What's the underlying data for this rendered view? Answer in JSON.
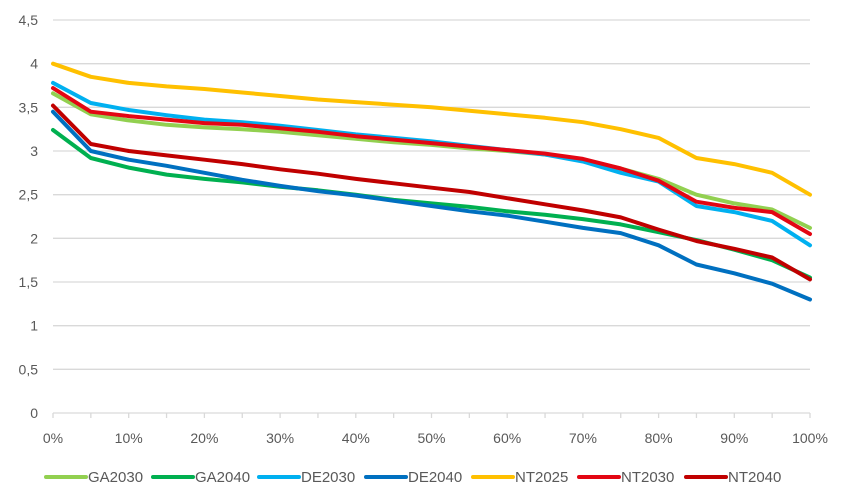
{
  "chart_data": {
    "type": "line",
    "title": "",
    "xlabel": "",
    "ylabel": "",
    "x": [
      0,
      5,
      10,
      15,
      20,
      25,
      30,
      35,
      40,
      45,
      50,
      55,
      60,
      65,
      70,
      75,
      80,
      85,
      90,
      95,
      100
    ],
    "x_unit": "%",
    "xlim": [
      0,
      100
    ],
    "ylim": [
      0,
      4.5
    ],
    "x_ticks": [
      "0%",
      "10%",
      "20%",
      "30%",
      "40%",
      "50%",
      "60%",
      "70%",
      "80%",
      "90%",
      "100%"
    ],
    "x_tick_values": [
      0,
      10,
      20,
      30,
      40,
      50,
      60,
      70,
      80,
      90,
      100
    ],
    "y_ticks": [
      "0",
      "0,5",
      "1",
      "1,5",
      "2",
      "2,5",
      "3",
      "3,5",
      "4",
      "4,5"
    ],
    "y_tick_values": [
      0,
      0.5,
      1,
      1.5,
      2,
      2.5,
      3,
      3.5,
      4,
      4.5
    ],
    "grid": "horizontal",
    "legend_position": "bottom",
    "series": [
      {
        "name": "GA2030",
        "color": "#92d050",
        "values": [
          3.66,
          3.42,
          3.35,
          3.3,
          3.27,
          3.25,
          3.22,
          3.18,
          3.14,
          3.1,
          3.07,
          3.03,
          3.0,
          2.96,
          2.9,
          2.8,
          2.68,
          2.5,
          2.4,
          2.33,
          2.12
        ]
      },
      {
        "name": "GA2040",
        "color": "#00b050",
        "values": [
          3.24,
          2.92,
          2.81,
          2.73,
          2.68,
          2.64,
          2.59,
          2.55,
          2.5,
          2.44,
          2.4,
          2.36,
          2.31,
          2.27,
          2.22,
          2.16,
          2.07,
          1.98,
          1.87,
          1.75,
          1.55
        ]
      },
      {
        "name": "DE2030",
        "color": "#00b0f0",
        "values": [
          3.78,
          3.55,
          3.47,
          3.41,
          3.36,
          3.33,
          3.29,
          3.24,
          3.19,
          3.15,
          3.11,
          3.06,
          3.01,
          2.96,
          2.88,
          2.75,
          2.65,
          2.37,
          2.3,
          2.2,
          1.92
        ]
      },
      {
        "name": "DE2040",
        "color": "#0070c0",
        "values": [
          3.45,
          3.0,
          2.9,
          2.83,
          2.75,
          2.67,
          2.6,
          2.54,
          2.49,
          2.43,
          2.37,
          2.31,
          2.26,
          2.19,
          2.12,
          2.06,
          1.92,
          1.7,
          1.6,
          1.48,
          1.3
        ]
      },
      {
        "name": "NT2025",
        "color": "#ffc000",
        "values": [
          4.0,
          3.85,
          3.78,
          3.74,
          3.71,
          3.67,
          3.63,
          3.59,
          3.56,
          3.53,
          3.5,
          3.46,
          3.42,
          3.38,
          3.33,
          3.25,
          3.15,
          2.92,
          2.85,
          2.75,
          2.5
        ]
      },
      {
        "name": "NT2030",
        "color": "#e30613",
        "values": [
          3.72,
          3.45,
          3.4,
          3.36,
          3.32,
          3.3,
          3.26,
          3.22,
          3.17,
          3.13,
          3.09,
          3.05,
          3.01,
          2.97,
          2.91,
          2.8,
          2.66,
          2.42,
          2.35,
          2.3,
          2.05
        ]
      },
      {
        "name": "NT2040",
        "color": "#c00000",
        "values": [
          3.52,
          3.08,
          3.0,
          2.95,
          2.9,
          2.85,
          2.79,
          2.74,
          2.68,
          2.63,
          2.58,
          2.53,
          2.46,
          2.39,
          2.32,
          2.24,
          2.1,
          1.97,
          1.88,
          1.78,
          1.53
        ]
      }
    ]
  }
}
